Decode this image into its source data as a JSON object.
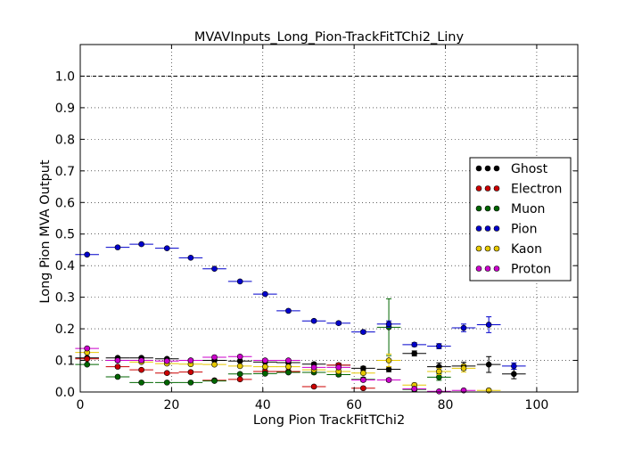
{
  "chart_data": {
    "type": "scatter",
    "title": "MVAVInputs_Long_Pion-TrackFitTChi2_Liny",
    "xlabel": "Long Pion TrackFitTChi2",
    "ylabel": "Long Pion MVA Output",
    "xlim": [
      0,
      109
    ],
    "ylim": [
      0,
      1.1
    ],
    "x_ticks": [
      "0",
      "20",
      "40",
      "60",
      "80",
      "100"
    ],
    "y_ticks": [
      "0.0",
      "0.1",
      "0.2",
      "0.3",
      "0.4",
      "0.5",
      "0.6",
      "0.7",
      "0.8",
      "0.9",
      "1.0"
    ],
    "grid": true,
    "legend_position": "center-right",
    "reference_line": 1.0,
    "bin_half_width": 2.6,
    "series": [
      {
        "name": "Ghost",
        "color": "#000000",
        "x": [
          1.5,
          8.2,
          13.4,
          19.0,
          24.2,
          29.4,
          35.0,
          40.5,
          45.6,
          51.2,
          56.6,
          62.0,
          67.6,
          73.2,
          78.6,
          84.0,
          89.5,
          95.0
        ],
        "y": [
          0.108,
          0.108,
          0.108,
          0.105,
          0.1,
          0.1,
          0.098,
          0.095,
          0.093,
          0.088,
          0.085,
          0.075,
          0.072,
          0.122,
          0.08,
          0.082,
          0.087,
          0.057
        ],
        "err": [
          0.003,
          0.003,
          0.003,
          0.003,
          0.003,
          0.003,
          0.003,
          0.004,
          0.004,
          0.005,
          0.005,
          0.006,
          0.008,
          0.008,
          0.012,
          0.012,
          0.025,
          0.015
        ]
      },
      {
        "name": "Electron",
        "color": "#cc0000",
        "x": [
          1.5,
          8.2,
          13.4,
          19.0,
          24.2,
          29.4,
          35.0,
          40.5,
          45.6,
          51.2,
          56.6,
          62.0
        ],
        "y": [
          0.105,
          0.08,
          0.07,
          0.06,
          0.063,
          0.037,
          0.04,
          0.065,
          0.065,
          0.017,
          0.085,
          0.012
        ],
        "err": [
          0.004,
          0.004,
          0.004,
          0.004,
          0.004,
          0.004,
          0.004,
          0.005,
          0.005,
          0.004,
          0.006,
          0.004
        ]
      },
      {
        "name": "Muon",
        "color": "#006600",
        "x": [
          1.5,
          8.2,
          13.4,
          19.0,
          24.2,
          29.4,
          35.0,
          40.5,
          45.6,
          51.2,
          56.6,
          62.0,
          67.6,
          73.2,
          78.6
        ],
        "y": [
          0.087,
          0.048,
          0.03,
          0.03,
          0.03,
          0.035,
          0.057,
          0.058,
          0.062,
          0.062,
          0.055,
          0.04,
          0.205,
          0.008,
          0.047
        ],
        "err": [
          0.003,
          0.003,
          0.003,
          0.003,
          0.003,
          0.003,
          0.004,
          0.004,
          0.004,
          0.005,
          0.005,
          0.006,
          0.09,
          0.005,
          0.01
        ]
      },
      {
        "name": "Pion",
        "color": "#0000cc",
        "x": [
          1.5,
          8.2,
          13.4,
          19.0,
          24.2,
          29.4,
          35.0,
          40.5,
          45.6,
          51.2,
          56.6,
          62.0,
          67.6,
          73.2,
          78.6,
          84.0,
          89.5,
          95.0
        ],
        "y": [
          0.435,
          0.458,
          0.468,
          0.455,
          0.425,
          0.39,
          0.35,
          0.31,
          0.257,
          0.225,
          0.218,
          0.19,
          0.215,
          0.15,
          0.145,
          0.203,
          0.213,
          0.082
        ],
        "err": [
          0.003,
          0.003,
          0.003,
          0.003,
          0.003,
          0.003,
          0.003,
          0.004,
          0.004,
          0.004,
          0.005,
          0.005,
          0.01,
          0.006,
          0.008,
          0.012,
          0.025,
          0.01
        ]
      },
      {
        "name": "Kaon",
        "color": "#e6c800",
        "x": [
          1.5,
          8.2,
          13.4,
          19.0,
          24.2,
          29.4,
          35.0,
          40.5,
          45.6,
          51.2,
          56.6,
          62.0,
          67.6,
          73.2,
          78.6,
          84.0,
          89.5
        ],
        "y": [
          0.125,
          0.1,
          0.095,
          0.09,
          0.088,
          0.087,
          0.082,
          0.08,
          0.08,
          0.07,
          0.065,
          0.06,
          0.1,
          0.022,
          0.065,
          0.075,
          0.005
        ],
        "err": [
          0.004,
          0.004,
          0.004,
          0.004,
          0.004,
          0.004,
          0.004,
          0.004,
          0.004,
          0.005,
          0.005,
          0.006,
          0.02,
          0.006,
          0.01,
          0.012,
          0.004
        ]
      },
      {
        "name": "Proton",
        "color": "#cc00cc",
        "x": [
          1.5,
          8.2,
          13.4,
          19.0,
          24.2,
          29.4,
          35.0,
          40.5,
          45.6,
          51.2,
          56.6,
          62.0,
          67.6,
          73.2,
          78.6,
          84.0
        ],
        "y": [
          0.138,
          0.1,
          0.1,
          0.098,
          0.1,
          0.11,
          0.112,
          0.1,
          0.1,
          0.078,
          0.078,
          0.038,
          0.038,
          0.01,
          0.002,
          0.005
        ],
        "err": [
          0.004,
          0.004,
          0.004,
          0.004,
          0.004,
          0.004,
          0.004,
          0.004,
          0.004,
          0.005,
          0.005,
          0.005,
          0.005,
          0.004,
          0.002,
          0.003
        ]
      }
    ]
  }
}
